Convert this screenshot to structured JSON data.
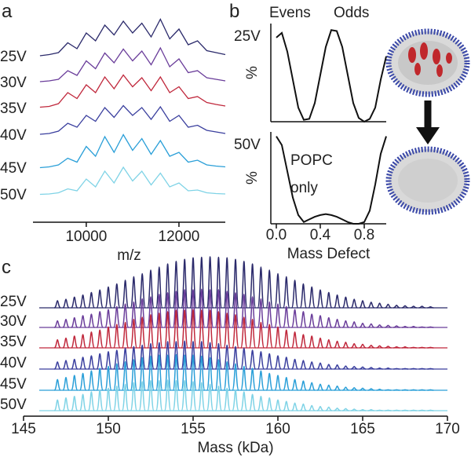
{
  "chart_data": [
    {
      "type": "spectrum-stack",
      "label": "a",
      "xlabel": "m/z",
      "x": [
        9000,
        9200,
        9400,
        9600,
        9800,
        10000,
        10200,
        10400,
        10600,
        10800,
        11000,
        11200,
        11400,
        11600,
        11800,
        12000,
        12200,
        12400,
        12600,
        12800,
        13000
      ],
      "xlim": [
        8850,
        13000
      ],
      "xticks": [
        10000,
        12000
      ],
      "series": [
        {
          "name": "25V",
          "color": "#2b2a6b",
          "values": [
            2,
            5,
            10,
            35,
            20,
            60,
            40,
            80,
            55,
            90,
            60,
            85,
            50,
            95,
            45,
            70,
            30,
            40,
            15,
            10,
            5
          ]
        },
        {
          "name": "30V",
          "color": "#6a3d9a",
          "values": [
            2,
            4,
            8,
            30,
            18,
            55,
            35,
            75,
            50,
            85,
            55,
            80,
            45,
            88,
            40,
            60,
            25,
            30,
            12,
            8,
            4
          ]
        },
        {
          "name": "35V",
          "color": "#c0283c",
          "values": [
            3,
            5,
            12,
            40,
            25,
            60,
            40,
            80,
            50,
            85,
            55,
            78,
            45,
            80,
            40,
            55,
            25,
            30,
            15,
            10,
            6
          ]
        },
        {
          "name": "40V",
          "color": "#3a3f9e",
          "values": [
            2,
            4,
            10,
            30,
            20,
            50,
            35,
            70,
            45,
            75,
            50,
            70,
            40,
            72,
            35,
            50,
            20,
            25,
            12,
            8,
            4
          ]
        },
        {
          "name": "45V",
          "color": "#2a9fd8",
          "values": [
            1,
            3,
            8,
            25,
            15,
            55,
            30,
            80,
            40,
            85,
            45,
            75,
            35,
            70,
            30,
            40,
            15,
            20,
            8,
            5,
            3
          ]
        },
        {
          "name": "50V",
          "color": "#7fd3e6",
          "values": [
            1,
            2,
            5,
            15,
            10,
            40,
            20,
            60,
            30,
            70,
            35,
            60,
            25,
            55,
            20,
            30,
            10,
            12,
            5,
            3,
            2
          ]
        }
      ]
    },
    {
      "type": "line",
      "label": "b",
      "ylabel": "%",
      "x": [
        0,
        0.05,
        0.1,
        0.15,
        0.2,
        0.25,
        0.3,
        0.35,
        0.4,
        0.45,
        0.5,
        0.55,
        0.6,
        0.65,
        0.7,
        0.75,
        0.8,
        0.85,
        0.9,
        0.95,
        1.0
      ],
      "xlim": [
        -0.05,
        1.0
      ],
      "ylim": [
        0,
        1.05
      ],
      "annotations": [
        "Evens",
        "Odds"
      ],
      "annotation_color": "#b5203c",
      "series": [
        {
          "name": "25V",
          "color": "#111111",
          "values": [
            0.9,
            0.95,
            0.75,
            0.45,
            0.15,
            0.02,
            0.03,
            0.2,
            0.5,
            0.8,
            0.98,
            0.97,
            0.8,
            0.5,
            0.2,
            0.04,
            0.0,
            0.03,
            0.15,
            0.45,
            0.7
          ]
        }
      ]
    },
    {
      "type": "line",
      "ylabel": "%",
      "xlabel": "Mass Defect",
      "x": [
        0,
        0.05,
        0.1,
        0.15,
        0.2,
        0.25,
        0.3,
        0.35,
        0.4,
        0.45,
        0.5,
        0.55,
        0.6,
        0.65,
        0.7,
        0.75,
        0.8,
        0.85,
        0.9,
        0.95,
        1.0
      ],
      "xlim": [
        -0.05,
        1.0
      ],
      "ylim": [
        0,
        1.05
      ],
      "xticks": [
        {
          "value": 0,
          "label": "0.0"
        },
        0.4,
        0.8
      ],
      "annotations": [
        "POPC",
        "only"
      ],
      "annotation_color": "#808080",
      "series": [
        {
          "name": "50V",
          "color": "#111111",
          "values": [
            1.0,
            0.9,
            0.6,
            0.3,
            0.1,
            0.02,
            0.05,
            0.08,
            0.1,
            0.11,
            0.1,
            0.08,
            0.05,
            0.02,
            0.0,
            0.0,
            0.02,
            0.15,
            0.45,
            0.8,
            1.0
          ]
        }
      ]
    },
    {
      "type": "peak-stack",
      "label": "c",
      "xlabel": "Mass (kDa)",
      "x": [
        147,
        147.5,
        148,
        148.5,
        149,
        149.5,
        150,
        150.5,
        151,
        151.5,
        152,
        152.5,
        153,
        153.5,
        154,
        154.5,
        155,
        155.5,
        156,
        156.5,
        157,
        157.5,
        158,
        158.5,
        159,
        159.5,
        160,
        160.5,
        161,
        161.5,
        162,
        162.5,
        163,
        163.5,
        164,
        164.5,
        165,
        165.5,
        166,
        166.5,
        167,
        167.5,
        168,
        168.5,
        169
      ],
      "xlim": [
        145,
        170
      ],
      "xticks": [
        145,
        150,
        155,
        160,
        165,
        170
      ],
      "series": [
        {
          "name": "25V",
          "color": "#2b2a6b",
          "values": [
            14,
            17,
            21,
            25,
            30,
            35,
            41,
            47,
            54,
            61,
            67,
            74,
            80,
            86,
            91,
            95,
            98,
            99,
            100,
            99,
            98,
            95,
            91,
            86,
            80,
            74,
            67,
            61,
            54,
            47,
            41,
            35,
            30,
            25,
            21,
            17,
            14,
            11,
            9,
            7,
            5,
            4,
            3,
            3,
            2
          ]
        },
        {
          "name": "30V",
          "color": "#6a3d9a",
          "values": [
            13,
            16,
            19,
            23,
            26,
            31,
            35,
            41,
            46,
            50,
            56,
            60,
            65,
            68,
            71,
            74,
            74,
            75,
            74,
            74,
            71,
            68,
            65,
            60,
            56,
            50,
            46,
            41,
            35,
            31,
            26,
            23,
            19,
            16,
            13,
            11,
            8,
            7,
            5,
            4,
            3,
            2,
            2,
            1,
            1
          ]
        },
        {
          "name": "35V",
          "color": "#c0283c",
          "values": [
            16,
            19,
            23,
            26,
            31,
            35,
            41,
            46,
            50,
            56,
            60,
            65,
            68,
            71,
            74,
            74,
            75,
            74,
            74,
            71,
            68,
            65,
            60,
            56,
            50,
            46,
            41,
            35,
            31,
            26,
            23,
            19,
            16,
            13,
            11,
            8,
            7,
            5,
            4,
            3,
            2,
            2,
            1,
            1,
            1
          ]
        },
        {
          "name": "40V",
          "color": "#3a3f9e",
          "values": [
            14,
            17,
            19,
            23,
            26,
            30,
            34,
            37,
            41,
            44,
            47,
            50,
            52,
            54,
            54,
            55,
            54,
            54,
            52,
            50,
            47,
            44,
            41,
            37,
            34,
            30,
            26,
            23,
            19,
            17,
            14,
            12,
            9,
            8,
            6,
            5,
            4,
            3,
            2,
            2,
            1,
            1,
            1,
            1,
            1
          ]
        },
        {
          "name": "45V",
          "color": "#2a9fd8",
          "values": [
            21,
            25,
            29,
            33,
            38,
            43,
            47,
            52,
            56,
            60,
            64,
            67,
            69,
            69,
            70,
            69,
            69,
            67,
            64,
            60,
            56,
            52,
            47,
            43,
            38,
            33,
            29,
            25,
            21,
            18,
            15,
            12,
            10,
            8,
            6,
            5,
            4,
            3,
            2,
            1,
            1,
            1,
            1,
            1,
            1
          ]
        },
        {
          "name": "50V",
          "color": "#7fd3e6",
          "values": [
            21,
            25,
            28,
            32,
            37,
            40,
            44,
            48,
            52,
            55,
            57,
            59,
            59,
            60,
            59,
            59,
            57,
            55,
            52,
            48,
            44,
            40,
            37,
            32,
            28,
            25,
            21,
            18,
            15,
            13,
            10,
            8,
            7,
            5,
            4,
            3,
            2,
            2,
            1,
            1,
            1,
            1,
            1,
            1,
            1
          ]
        }
      ]
    }
  ]
}
